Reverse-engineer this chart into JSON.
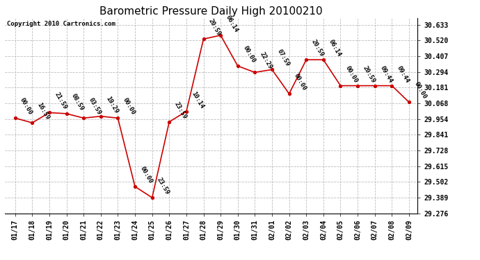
{
  "title": "Barometric Pressure Daily High 20100210",
  "copyright": "Copyright 2010 Cartronics.com",
  "background_color": "#ffffff",
  "line_color": "#cc0000",
  "marker_color": "#cc0000",
  "grid_color": "#bbbbbb",
  "x_labels": [
    "01/17",
    "01/18",
    "01/19",
    "01/20",
    "01/21",
    "01/22",
    "01/23",
    "01/24",
    "01/25",
    "01/26",
    "01/27",
    "01/28",
    "01/29",
    "01/30",
    "01/31",
    "02/01",
    "02/02",
    "02/03",
    "02/04",
    "02/05",
    "02/06",
    "02/07",
    "02/08",
    "02/09"
  ],
  "y_values": [
    29.961,
    29.927,
    30.0,
    29.993,
    29.961,
    29.974,
    29.961,
    29.468,
    29.388,
    29.934,
    30.009,
    30.53,
    30.557,
    30.336,
    30.29,
    30.31,
    30.136,
    30.381,
    30.381,
    30.194,
    30.194,
    30.194,
    30.194,
    30.075
  ],
  "point_labels": [
    "00:00",
    "16:59",
    "21:59",
    "08:59",
    "03:59",
    "19:29",
    "00:00",
    "00:00",
    "23:59",
    "23:59",
    "10:14",
    "20:59",
    "06:14",
    "00:00",
    "22:29",
    "07:59",
    "00:00",
    "20:59",
    "06:14",
    "00:00",
    "20:59",
    "09:44",
    "09:44",
    "00:00"
  ],
  "y_ticks": [
    29.276,
    29.389,
    29.502,
    29.615,
    29.728,
    29.841,
    29.954,
    30.068,
    30.181,
    30.294,
    30.407,
    30.52,
    30.633
  ],
  "ylim": [
    29.276,
    30.68
  ],
  "xlim": [
    -0.6,
    23.5
  ],
  "title_fontsize": 11,
  "label_fontsize": 6.5,
  "tick_fontsize": 7,
  "copyright_fontsize": 6.5
}
